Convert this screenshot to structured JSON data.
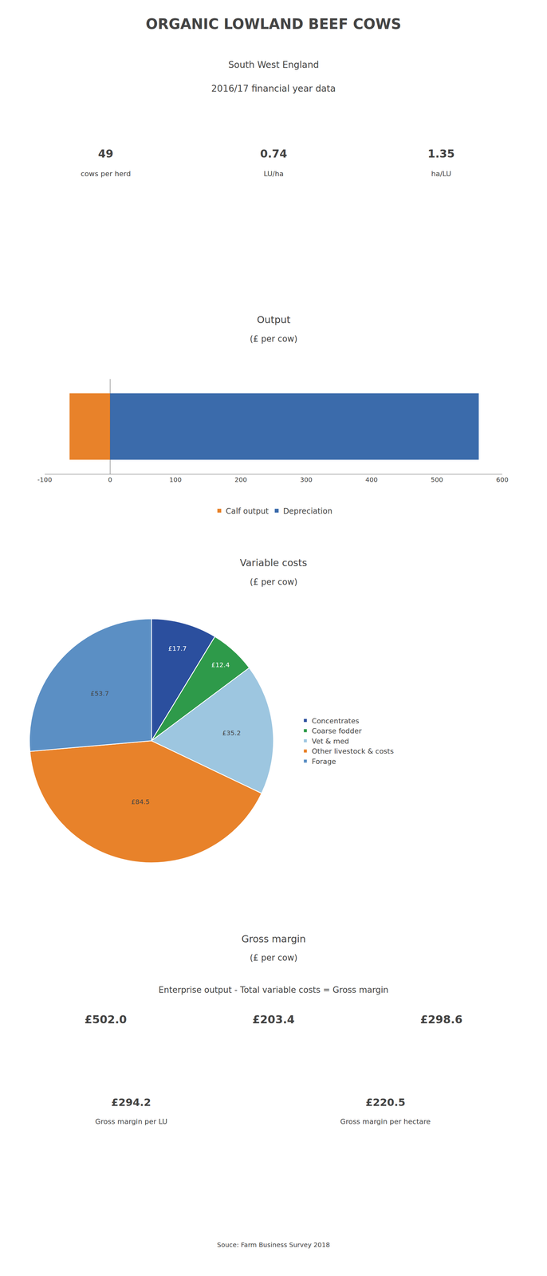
{
  "title": "ORGANIC LOWLAND BEEF COWS",
  "subtitle": [
    "South West England",
    "2016/17 financial year data"
  ],
  "annotations": [
    [
      "49",
      "cows per herd"
    ],
    [
      "0.74",
      "LU/ha"
    ],
    [
      "1.35",
      "ha/LU"
    ],
    [
      "Gross margin"
    ],
    [
      "(£ per cow)"
    ],
    [
      "Enterprise output - Total variable costs = Gross margin"
    ],
    [
      "£502.0",
      "£203.4",
      "£298.6"
    ],
    [
      "£294.2",
      "Gross margin per LU"
    ],
    [
      "£220.5",
      "Gross margin per hectare"
    ],
    [
      "Souce: Farm Business Survey 2018"
    ]
  ],
  "chart_data": [
    {
      "type": "bar",
      "title": "Output",
      "subtitle": "(£ per cow)",
      "orientation": "horizontal",
      "categories": [
        null
      ],
      "series": [
        {
          "name": "Calf output",
          "color": "#E8822A",
          "values": [
            -62
          ]
        },
        {
          "name": "Depreciation",
          "color": "#3B6BAB",
          "values": [
            564
          ]
        }
      ],
      "xlim": [
        -100,
        600
      ],
      "xticks": [
        -100,
        0,
        100,
        200,
        300,
        400,
        500,
        600
      ],
      "grid": false,
      "legend": "bottom"
    },
    {
      "type": "pie",
      "title": "Variable costs",
      "subtitle": "(£ per cow)",
      "categories": [
        "Concentrates",
        "Coarse fodder",
        "Vet & med",
        "Other livestock & costs",
        "Forage"
      ],
      "values": [
        17.7,
        12.4,
        35.2,
        84.5,
        53.7
      ],
      "value_labels": [
        "£17.7",
        "£12.4",
        "£35.2",
        "£84.5",
        "£53.7"
      ],
      "colors": [
        "#2B4F9E",
        "#2E9A4A",
        "#9DC6E0",
        "#E8822A",
        "#5B8FC4"
      ],
      "legend": "right"
    }
  ]
}
